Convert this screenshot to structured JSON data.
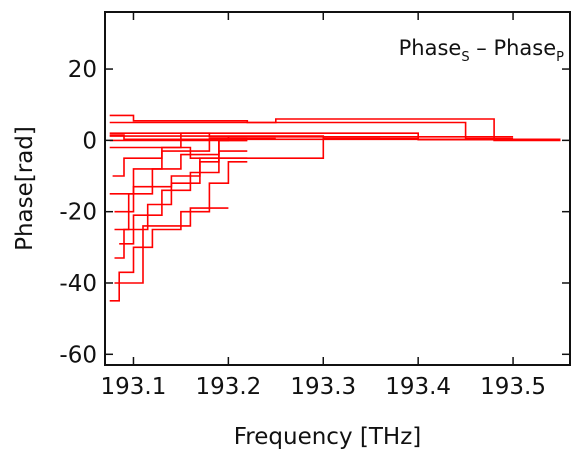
{
  "chart_data": {
    "type": "line",
    "xlabel": "Frequency [THz]",
    "ylabel": "Phase[rad]",
    "xlim": [
      193.07,
      193.56
    ],
    "ylim": [
      -63,
      36
    ],
    "x_ticks": [
      193.1,
      193.2,
      193.3,
      193.4,
      193.5
    ],
    "x_tick_labels": [
      "193.1",
      "193.2",
      "193.3",
      "193.4",
      "193.5"
    ],
    "y_ticks": [
      20,
      0,
      -20,
      -40,
      -60
    ],
    "y_tick_labels": [
      "20",
      "0",
      "-20",
      "-40",
      "-60"
    ],
    "annotation": {
      "main": "Phase",
      "sub1": "S",
      "mid": " – Phase",
      "sub2": "P"
    },
    "line_color": "#ff0000",
    "grid": false,
    "series": [
      {
        "x": [
          193.075,
          193.09,
          193.09,
          193.55
        ],
        "y": [
          1.5,
          1.5,
          0.3,
          0.3
        ]
      },
      {
        "x": [
          193.075,
          193.25,
          193.25,
          193.48,
          193.48,
          193.55
        ],
        "y": [
          5,
          5,
          6,
          6,
          0,
          0
        ]
      },
      {
        "x": [
          193.075,
          193.1,
          193.1,
          193.22,
          193.22,
          193.45,
          193.45,
          193.5
        ],
        "y": [
          7,
          7,
          5.5,
          5.5,
          5,
          5,
          0.5,
          0.5
        ]
      },
      {
        "x": [
          193.075,
          193.3,
          193.3,
          193.5
        ],
        "y": [
          1.2,
          1.2,
          1.0,
          1.0
        ]
      },
      {
        "x": [
          193.075,
          193.4,
          193.4,
          193.55
        ],
        "y": [
          2.0,
          2.0,
          0.2,
          0.2
        ]
      },
      {
        "x": [
          193.075,
          193.2,
          193.2,
          193.3,
          193.3,
          193.4
        ],
        "y": [
          0,
          0,
          1,
          1,
          0.5,
          0.5
        ]
      },
      {
        "x": [
          193.075,
          193.16,
          193.16,
          193.3,
          193.3,
          193.36
        ],
        "y": [
          -2,
          -2,
          -5,
          -5,
          0.5,
          0.5
        ]
      },
      {
        "x": [
          193.075,
          193.085,
          193.085,
          193.1,
          193.1,
          193.12,
          193.12,
          193.15,
          193.15,
          193.18,
          193.18,
          193.2,
          193.2,
          193.22
        ],
        "y": [
          -45,
          -45,
          -37,
          -37,
          -30,
          -30,
          -25,
          -25,
          -20,
          -20,
          -12,
          -12,
          -6,
          -6
        ]
      },
      {
        "x": [
          193.08,
          193.09,
          193.09,
          193.115,
          193.115,
          193.14,
          193.14,
          193.17,
          193.17,
          193.19,
          193.19,
          193.22
        ],
        "y": [
          -33,
          -33,
          -25,
          -25,
          -18,
          -18,
          -12,
          -12,
          -6,
          -6,
          0,
          0
        ]
      },
      {
        "x": [
          193.08,
          193.095,
          193.095,
          193.12,
          193.12,
          193.15,
          193.15,
          193.19,
          193.19,
          193.22
        ],
        "y": [
          -25,
          -25,
          -15,
          -15,
          -8,
          -8,
          -4,
          -4,
          0,
          0
        ]
      },
      {
        "x": [
          193.078,
          193.09,
          193.09,
          193.13,
          193.13,
          193.15,
          193.15,
          193.18,
          193.18,
          193.22
        ],
        "y": [
          -10,
          -10,
          -5,
          -5,
          -2,
          -2,
          2,
          2,
          1,
          1
        ]
      },
      {
        "x": [
          193.075,
          193.1,
          193.1,
          193.13,
          193.13,
          193.18,
          193.18,
          193.25
        ],
        "y": [
          -15,
          -15,
          -8,
          -8,
          -3,
          -3,
          0.5,
          0.5
        ]
      },
      {
        "x": [
          193.08,
          193.1,
          193.1,
          193.14,
          193.14,
          193.17,
          193.17,
          193.22
        ],
        "y": [
          -20,
          -20,
          -13,
          -13,
          -10,
          -10,
          -5,
          -5
        ]
      },
      {
        "x": [
          193.08,
          193.11,
          193.11,
          193.16,
          193.16,
          193.2
        ],
        "y": [
          -40,
          -40,
          -24,
          -24,
          -19,
          -19
        ]
      },
      {
        "x": [
          193.085,
          193.1,
          193.1,
          193.13,
          193.13,
          193.16,
          193.16,
          193.19,
          193.19,
          193.22
        ],
        "y": [
          -29,
          -29,
          -21,
          -21,
          -14,
          -14,
          -9,
          -9,
          -3,
          -3
        ]
      }
    ]
  }
}
